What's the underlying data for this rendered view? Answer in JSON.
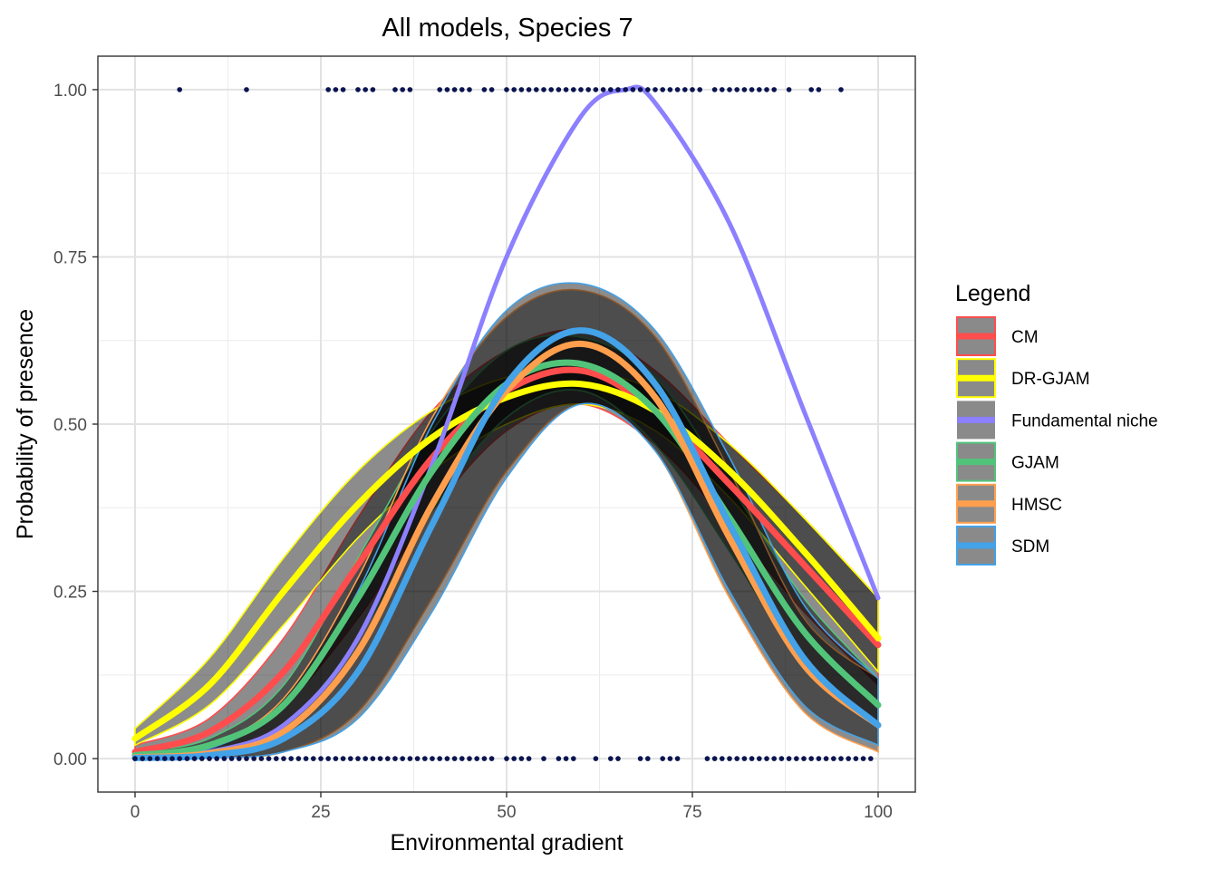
{
  "chart_data": {
    "type": "line",
    "title": "All models, Species 7",
    "xlabel": "Environmental gradient",
    "ylabel": "Probability of presence",
    "xlim": [
      -5,
      105
    ],
    "ylim": [
      -0.05,
      1.05
    ],
    "x_ticks": [
      "0",
      "25",
      "50",
      "75",
      "100"
    ],
    "y_ticks": [
      "0.00",
      "0.25",
      "0.50",
      "0.75",
      "1.00"
    ],
    "grid": true,
    "legend": {
      "title": "Legend",
      "position": "right",
      "entries": [
        "CM",
        "DR-GJAM",
        "Fundamental niche",
        "GJAM",
        "HMSC",
        "SDM"
      ]
    },
    "series": [
      {
        "name": "CM",
        "color": "#ff4d4d",
        "x": [
          0,
          10,
          20,
          30,
          40,
          50,
          60,
          70,
          80,
          90,
          100
        ],
        "y": [
          0.01,
          0.04,
          0.13,
          0.29,
          0.45,
          0.55,
          0.58,
          0.52,
          0.41,
          0.29,
          0.17
        ],
        "lower": [
          0.005,
          0.02,
          0.08,
          0.21,
          0.37,
          0.49,
          0.53,
          0.47,
          0.35,
          0.22,
          0.11
        ],
        "upper": [
          0.02,
          0.06,
          0.18,
          0.36,
          0.52,
          0.61,
          0.64,
          0.58,
          0.47,
          0.36,
          0.24
        ]
      },
      {
        "name": "DR-GJAM",
        "color": "#ffff00",
        "x": [
          0,
          10,
          20,
          30,
          40,
          50,
          60,
          70,
          80,
          90,
          100
        ],
        "y": [
          0.03,
          0.11,
          0.25,
          0.38,
          0.48,
          0.54,
          0.56,
          0.52,
          0.43,
          0.31,
          0.18
        ],
        "lower": [
          0.02,
          0.08,
          0.2,
          0.33,
          0.43,
          0.5,
          0.53,
          0.49,
          0.39,
          0.26,
          0.13
        ],
        "upper": [
          0.045,
          0.15,
          0.3,
          0.43,
          0.52,
          0.57,
          0.58,
          0.55,
          0.47,
          0.36,
          0.24
        ]
      },
      {
        "name": "Fundamental niche",
        "color": "#8c80ff",
        "x": [
          0,
          10,
          20,
          30,
          40,
          50,
          60,
          66,
          70,
          80,
          90,
          100
        ],
        "y": [
          0.0,
          0.01,
          0.05,
          0.18,
          0.44,
          0.75,
          0.96,
          1.0,
          0.98,
          0.8,
          0.52,
          0.24
        ]
      },
      {
        "name": "GJAM",
        "color": "#52c47a",
        "x": [
          0,
          10,
          20,
          30,
          40,
          50,
          60,
          70,
          80,
          90,
          100
        ],
        "y": [
          0.005,
          0.02,
          0.08,
          0.24,
          0.43,
          0.56,
          0.59,
          0.52,
          0.36,
          0.19,
          0.08
        ],
        "lower": [
          0.002,
          0.01,
          0.05,
          0.18,
          0.37,
          0.51,
          0.55,
          0.47,
          0.31,
          0.14,
          0.05
        ],
        "upper": [
          0.01,
          0.03,
          0.11,
          0.3,
          0.49,
          0.61,
          0.63,
          0.57,
          0.41,
          0.24,
          0.12
        ]
      },
      {
        "name": "HMSC",
        "color": "#ff9f4d",
        "x": [
          0,
          10,
          20,
          30,
          40,
          50,
          60,
          70,
          80,
          90,
          100
        ],
        "y": [
          0.002,
          0.008,
          0.04,
          0.16,
          0.38,
          0.55,
          0.62,
          0.54,
          0.33,
          0.14,
          0.05
        ],
        "lower": [
          0.0,
          0.002,
          0.01,
          0.07,
          0.24,
          0.43,
          0.53,
          0.46,
          0.24,
          0.07,
          0.01
        ],
        "upper": [
          0.005,
          0.02,
          0.09,
          0.27,
          0.51,
          0.66,
          0.7,
          0.63,
          0.43,
          0.21,
          0.12
        ]
      },
      {
        "name": "SDM",
        "color": "#43a2e8",
        "x": [
          0,
          10,
          20,
          30,
          40,
          50,
          60,
          70,
          80,
          90,
          100
        ],
        "y": [
          0.001,
          0.005,
          0.03,
          0.13,
          0.35,
          0.56,
          0.64,
          0.56,
          0.35,
          0.15,
          0.05
        ],
        "lower": [
          0.0,
          0.001,
          0.01,
          0.06,
          0.22,
          0.42,
          0.53,
          0.46,
          0.25,
          0.08,
          0.02
        ],
        "upper": [
          0.004,
          0.015,
          0.08,
          0.25,
          0.5,
          0.67,
          0.71,
          0.64,
          0.45,
          0.23,
          0.12
        ]
      }
    ],
    "observations": {
      "presence_x": [
        6,
        15,
        26,
        27,
        28,
        30,
        31,
        32,
        35,
        36,
        37,
        41,
        42,
        43,
        44,
        45,
        47,
        48,
        50,
        51,
        52,
        53,
        54,
        55,
        56,
        57,
        58,
        59,
        60,
        61,
        62,
        63,
        64,
        65,
        66,
        67,
        68,
        69,
        70,
        71,
        72,
        73,
        74,
        75,
        76,
        78,
        79,
        80,
        81,
        82,
        83,
        84,
        85,
        86,
        88,
        91,
        92,
        95
      ],
      "absence_x": [
        0,
        1,
        2,
        3,
        4,
        5,
        6,
        7,
        8,
        9,
        10,
        11,
        12,
        13,
        14,
        15,
        16,
        17,
        18,
        19,
        20,
        21,
        22,
        23,
        24,
        25,
        26,
        27,
        28,
        29,
        30,
        31,
        32,
        33,
        34,
        35,
        36,
        37,
        38,
        39,
        40,
        41,
        42,
        43,
        44,
        45,
        46,
        47,
        48,
        50,
        51,
        52,
        53,
        55,
        57,
        58,
        59,
        62,
        64,
        65,
        68,
        69,
        71,
        72,
        73,
        77,
        78,
        79,
        80,
        81,
        82,
        83,
        84,
        85,
        86,
        87,
        88,
        89,
        90,
        91,
        92,
        93,
        94,
        95,
        96,
        97,
        98,
        99
      ],
      "color": "#0a1450"
    }
  }
}
